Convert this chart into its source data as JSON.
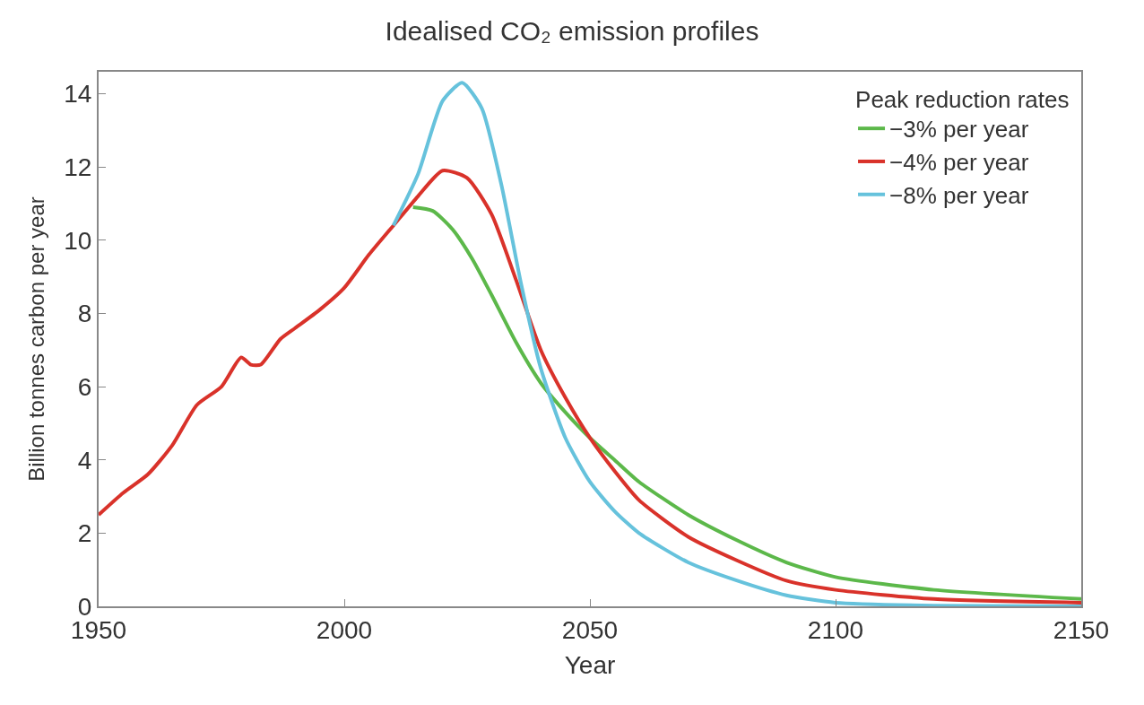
{
  "chart_data": {
    "type": "line",
    "title": "Idealised CO₂ emission profiles",
    "xlabel": "Year",
    "ylabel": "Billion tonnes carbon per year",
    "legend_title": "Peak reduction rates",
    "legend": "top right",
    "marker": "none",
    "line_style": "solid",
    "xlim": [
      1950,
      2150
    ],
    "xticks": [
      1950,
      2000,
      2050,
      2100,
      2150
    ],
    "ylim": [
      0,
      14.6
    ],
    "yticks": [
      0,
      2,
      4,
      6,
      8,
      10,
      12,
      14
    ],
    "series": [
      {
        "name": "−3% per year",
        "color": "#5cb84a",
        "x": [
          2014,
          2018,
          2022,
          2026,
          2030,
          2035,
          2040,
          2045,
          2050,
          2055,
          2060,
          2070,
          2080,
          2090,
          2100,
          2120,
          2150
        ],
        "values": [
          10.9,
          10.8,
          10.3,
          9.5,
          8.5,
          7.2,
          6.1,
          5.3,
          4.6,
          4.0,
          3.4,
          2.5,
          1.8,
          1.2,
          0.8,
          0.45,
          0.2
        ]
      },
      {
        "name": "−4% per year",
        "color": "#d9322a",
        "x": [
          1950,
          1955,
          1960,
          1965,
          1970,
          1975,
          1979,
          1981,
          1983,
          1987,
          1990,
          1995,
          2000,
          2005,
          2010,
          2015,
          2020,
          2025,
          2030,
          2035,
          2040,
          2045,
          2050,
          2055,
          2060,
          2070,
          2080,
          2090,
          2100,
          2120,
          2150
        ],
        "values": [
          2.5,
          3.1,
          3.6,
          4.4,
          5.5,
          6.0,
          6.8,
          6.6,
          6.6,
          7.3,
          7.6,
          8.1,
          8.7,
          9.6,
          10.4,
          11.2,
          11.9,
          11.7,
          10.7,
          8.9,
          7.0,
          5.7,
          4.6,
          3.7,
          2.9,
          1.9,
          1.25,
          0.7,
          0.45,
          0.2,
          0.1
        ]
      },
      {
        "name": "−8% per year",
        "color": "#66c2dc",
        "x": [
          2010,
          2015,
          2020,
          2024,
          2028,
          2032,
          2036,
          2040,
          2045,
          2050,
          2055,
          2060,
          2070,
          2080,
          2090,
          2100,
          2120,
          2150
        ],
        "values": [
          10.4,
          11.8,
          13.8,
          14.3,
          13.6,
          11.5,
          8.8,
          6.5,
          4.6,
          3.4,
          2.6,
          2.0,
          1.2,
          0.7,
          0.3,
          0.1,
          0.02,
          0
        ]
      }
    ]
  }
}
